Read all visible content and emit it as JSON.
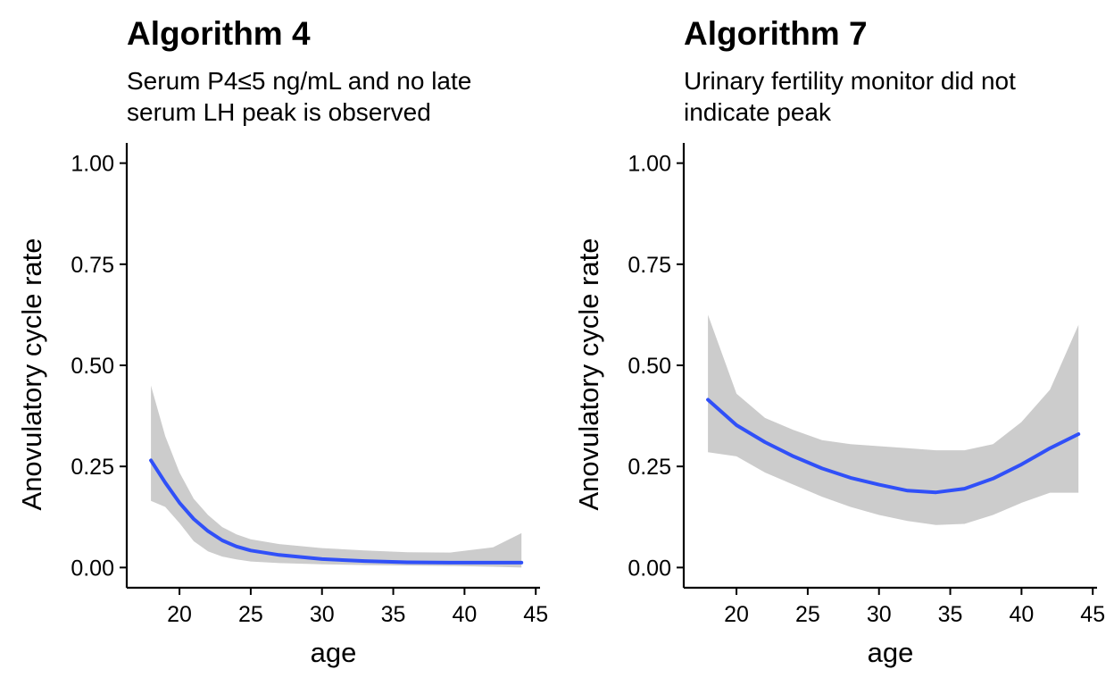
{
  "chart_data": [
    {
      "type": "line",
      "title": "Algorithm 4",
      "subtitle": [
        "Serum P4≤5 ng/mL and no late",
        "serum LH peak is observed"
      ],
      "xlabel": "age",
      "ylabel": "Anovulatory cycle rate",
      "xlim": [
        16.3,
        45.3
      ],
      "ylim": [
        -0.05,
        1.05
      ],
      "xticks": [
        20,
        25,
        30,
        35,
        40,
        45
      ],
      "xtick_labels": [
        "20",
        "25",
        "30",
        "35",
        "40",
        "45"
      ],
      "yticks": [
        0,
        0.25,
        0.5,
        0.75,
        1.0
      ],
      "ytick_labels": [
        "0.00",
        "0.25",
        "0.50",
        "0.75",
        "1.00"
      ],
      "grid": false,
      "colors": {
        "line": "#3050f8",
        "band": "#cccccc"
      },
      "series": [
        {
          "x": [
            18,
            19,
            20,
            21,
            22,
            23,
            24,
            25,
            27,
            30,
            33,
            36,
            39,
            42,
            44
          ],
          "y": [
            0.265,
            0.21,
            0.16,
            0.12,
            0.09,
            0.067,
            0.052,
            0.042,
            0.031,
            0.021,
            0.016,
            0.013,
            0.012,
            0.012,
            0.012
          ],
          "lower": [
            0.165,
            0.15,
            0.11,
            0.065,
            0.04,
            0.027,
            0.02,
            0.015,
            0.011,
            0.008,
            0.006,
            0.005,
            0.004,
            0.002,
            0.0
          ],
          "upper": [
            0.45,
            0.325,
            0.235,
            0.17,
            0.13,
            0.1,
            0.082,
            0.07,
            0.058,
            0.048,
            0.042,
            0.038,
            0.037,
            0.05,
            0.085
          ]
        }
      ]
    },
    {
      "type": "line",
      "title": "Algorithm 7",
      "subtitle": [
        "Urinary fertility monitor did not",
        "indicate peak"
      ],
      "xlabel": "age",
      "ylabel": "Anovulatory cycle rate",
      "xlim": [
        16.3,
        45.3
      ],
      "ylim": [
        -0.05,
        1.05
      ],
      "xticks": [
        20,
        25,
        30,
        35,
        40,
        45
      ],
      "xtick_labels": [
        "20",
        "25",
        "30",
        "35",
        "40",
        "45"
      ],
      "yticks": [
        0,
        0.25,
        0.5,
        0.75,
        1.0
      ],
      "ytick_labels": [
        "0.00",
        "0.25",
        "0.50",
        "0.75",
        "1.00"
      ],
      "grid": false,
      "colors": {
        "line": "#3050f8",
        "band": "#cccccc"
      },
      "series": [
        {
          "x": [
            18,
            20,
            22,
            24,
            26,
            28,
            30,
            32,
            34,
            36,
            38,
            40,
            42,
            44
          ],
          "y": [
            0.415,
            0.352,
            0.31,
            0.275,
            0.245,
            0.222,
            0.205,
            0.19,
            0.186,
            0.195,
            0.22,
            0.255,
            0.295,
            0.33
          ],
          "lower": [
            0.285,
            0.275,
            0.235,
            0.205,
            0.175,
            0.15,
            0.13,
            0.115,
            0.105,
            0.108,
            0.13,
            0.16,
            0.185,
            0.185
          ],
          "upper": [
            0.625,
            0.43,
            0.37,
            0.34,
            0.315,
            0.305,
            0.3,
            0.295,
            0.29,
            0.29,
            0.305,
            0.36,
            0.44,
            0.6
          ]
        }
      ]
    }
  ]
}
